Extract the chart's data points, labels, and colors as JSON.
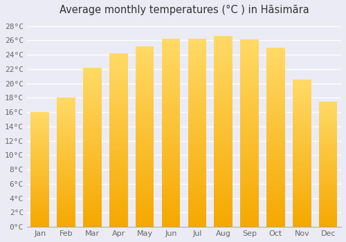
{
  "title": "Average monthly temperatures (°C ) in Hāsimāra",
  "months": [
    "Jan",
    "Feb",
    "Mar",
    "Apr",
    "May",
    "Jun",
    "Jul",
    "Aug",
    "Sep",
    "Oct",
    "Nov",
    "Dec"
  ],
  "values": [
    16.0,
    18.0,
    22.2,
    24.2,
    25.2,
    26.2,
    26.2,
    26.6,
    26.1,
    25.0,
    20.5,
    17.5
  ],
  "bar_color_bottom": "#F5A800",
  "bar_color_top": "#FFD966",
  "background_color": "#EBEBF5",
  "plot_bg_color": "#EBEBF5",
  "grid_color": "#FFFFFF",
  "spine_color": "#AAAAAA",
  "tick_color": "#666666",
  "title_color": "#333333",
  "ylim": [
    0,
    29
  ],
  "yticks": [
    0,
    2,
    4,
    6,
    8,
    10,
    12,
    14,
    16,
    18,
    20,
    22,
    24,
    26,
    28
  ],
  "ytick_labels": [
    "0°C",
    "2°C",
    "4°C",
    "6°C",
    "8°C",
    "10°C",
    "12°C",
    "14°C",
    "16°C",
    "18°C",
    "20°C",
    "22°C",
    "24°C",
    "26°C",
    "28°C"
  ],
  "title_fontsize": 10.5,
  "tick_fontsize": 8,
  "bar_width": 0.7,
  "figsize": [
    5.0,
    3.5
  ],
  "dpi": 100,
  "n_gradient": 50
}
